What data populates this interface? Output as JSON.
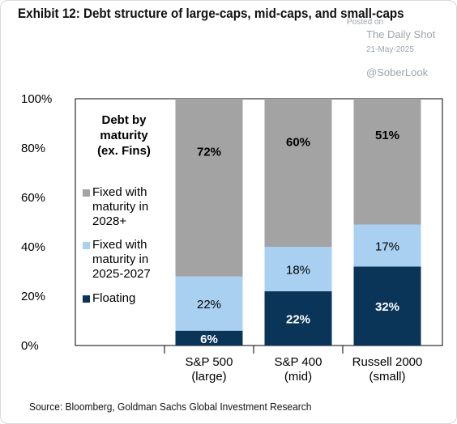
{
  "title": "Exhibit 12: Debt structure of large-caps, mid-caps, and small-caps",
  "watermark": {
    "posted_on": "Posted on",
    "site": "The Daily Shot",
    "date": "21-May-2025",
    "handle": "@SoberLook"
  },
  "source": "Source: Bloomberg, Goldman Sachs Global Investment Research",
  "colors": {
    "floating": "#0b3558",
    "fixed_2025_2027": "#a9d0f1",
    "fixed_2028": "#a3a3a3"
  },
  "chart_data": {
    "type": "bar",
    "stacked": true,
    "categories": [
      "S&P 500\n(large)",
      "S&P 400\n(mid)",
      "Russell 2000\n(small)"
    ],
    "category_lines": [
      [
        "S&P 500",
        "(large)"
      ],
      [
        "S&P 400",
        "(mid)"
      ],
      [
        "Russell 2000",
        "(small)"
      ]
    ],
    "ylim": [
      0,
      100
    ],
    "yticks": [
      "0%",
      "20%",
      "40%",
      "60%",
      "80%",
      "100%"
    ],
    "legend_title": [
      "Debt by",
      "maturity",
      "(ex. Fins)"
    ],
    "legend_position": "left, inside plot",
    "series": [
      {
        "name": "Floating",
        "values": [
          6,
          22,
          32
        ],
        "labels": [
          "6%",
          "22%",
          "32%"
        ],
        "label_bold": true,
        "label_color": "#ffffff"
      },
      {
        "name": "Fixed with maturity in 2025-2027",
        "legend_lines": [
          "Fixed with",
          "maturity in",
          "2025-2027"
        ],
        "values": [
          22,
          18,
          17
        ],
        "labels": [
          "22%",
          "18%",
          "17%"
        ],
        "label_bold": false,
        "label_color": "#000000"
      },
      {
        "name": "Fixed with maturity in 2028+",
        "legend_lines": [
          "Fixed with",
          "maturity in",
          "2028+"
        ],
        "values": [
          72,
          60,
          51
        ],
        "labels": [
          "72%",
          "60%",
          "51%"
        ],
        "label_bold": true,
        "label_color": "#000000"
      }
    ],
    "legend_floating": [
      "Floating"
    ]
  }
}
